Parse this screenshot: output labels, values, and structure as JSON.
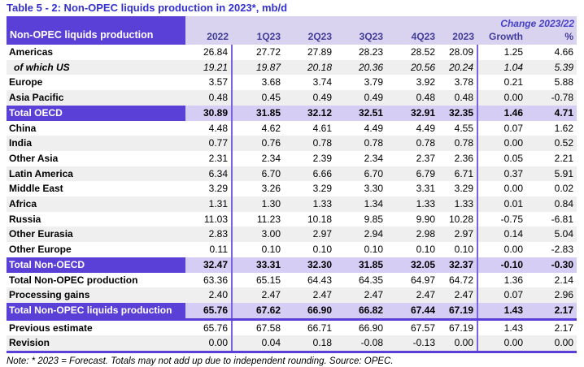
{
  "title": "Table 5 - 2: Non-OPEC liquids production in 2023*, mb/d",
  "note": "Note: * 2023 = Forecast. Totals may not add up due to independent rounding. Source: OPEC.",
  "colors": {
    "title_blue": "#3330cf",
    "header_purple": "#5a40d6",
    "header_lavender": "#dad3f0",
    "total_row_lavender": "#d6cdf4",
    "stripe_gray": "#efefef",
    "column_separator_purple": "#7a63e0",
    "column_header_text": "#403d99",
    "change_label_text": "#4440c8"
  },
  "table": {
    "corner_label": "Non-OPEC liquids production",
    "change_label": "Change 2023/22",
    "columns": [
      "2022",
      "1Q23",
      "2Q23",
      "3Q23",
      "4Q23",
      "2023",
      "Growth",
      "%"
    ],
    "rows": [
      {
        "label": "Americas",
        "style": "plain",
        "values": [
          "26.84",
          "27.72",
          "27.89",
          "28.23",
          "28.52",
          "28.09",
          "1.25",
          "4.66"
        ]
      },
      {
        "label": "of which US",
        "style": "italic gray",
        "values": [
          "19.21",
          "19.87",
          "20.18",
          "20.36",
          "20.56",
          "20.24",
          "1.04",
          "5.39"
        ]
      },
      {
        "label": "Europe",
        "style": "plain",
        "values": [
          "3.57",
          "3.68",
          "3.74",
          "3.79",
          "3.92",
          "3.78",
          "0.21",
          "5.88"
        ]
      },
      {
        "label": "Asia Pacific",
        "style": "gray",
        "values": [
          "0.48",
          "0.45",
          "0.49",
          "0.49",
          "0.48",
          "0.48",
          "0.00",
          "-0.78"
        ]
      },
      {
        "label": "Total OECD",
        "style": "total",
        "values": [
          "30.89",
          "31.85",
          "32.12",
          "32.51",
          "32.91",
          "32.35",
          "1.46",
          "4.71"
        ]
      },
      {
        "label": "China",
        "style": "plain",
        "values": [
          "4.48",
          "4.62",
          "4.61",
          "4.49",
          "4.49",
          "4.55",
          "0.07",
          "1.62"
        ]
      },
      {
        "label": "India",
        "style": "gray",
        "values": [
          "0.77",
          "0.76",
          "0.78",
          "0.78",
          "0.78",
          "0.78",
          "0.00",
          "0.52"
        ]
      },
      {
        "label": "Other Asia",
        "style": "plain",
        "values": [
          "2.31",
          "2.34",
          "2.39",
          "2.34",
          "2.37",
          "2.36",
          "0.05",
          "2.21"
        ]
      },
      {
        "label": "Latin America",
        "style": "gray",
        "values": [
          "6.34",
          "6.70",
          "6.66",
          "6.70",
          "6.79",
          "6.71",
          "0.37",
          "5.91"
        ]
      },
      {
        "label": "Middle East",
        "style": "plain",
        "values": [
          "3.29",
          "3.26",
          "3.29",
          "3.30",
          "3.31",
          "3.29",
          "0.00",
          "0.02"
        ]
      },
      {
        "label": "Africa",
        "style": "gray",
        "values": [
          "1.31",
          "1.30",
          "1.33",
          "1.34",
          "1.33",
          "1.33",
          "0.01",
          "0.84"
        ]
      },
      {
        "label": "Russia",
        "style": "plain",
        "values": [
          "11.03",
          "11.23",
          "10.18",
          "9.85",
          "9.90",
          "10.28",
          "-0.75",
          "-6.81"
        ]
      },
      {
        "label": "Other Eurasia",
        "style": "gray",
        "values": [
          "2.83",
          "3.00",
          "2.97",
          "2.94",
          "2.98",
          "2.97",
          "0.14",
          "5.04"
        ]
      },
      {
        "label": "Other Europe",
        "style": "plain",
        "values": [
          "0.11",
          "0.10",
          "0.10",
          "0.10",
          "0.10",
          "0.10",
          "0.00",
          "-2.83"
        ]
      },
      {
        "label": "Total Non-OECD",
        "style": "total",
        "values": [
          "32.47",
          "33.31",
          "32.30",
          "31.85",
          "32.05",
          "32.37",
          "-0.10",
          "-0.30"
        ]
      },
      {
        "label": "Total Non-OPEC production",
        "style": "plain",
        "values": [
          "63.36",
          "65.15",
          "64.43",
          "64.35",
          "64.97",
          "64.72",
          "1.36",
          "2.14"
        ]
      },
      {
        "label": "Processing gains",
        "style": "gray",
        "values": [
          "2.40",
          "2.47",
          "2.47",
          "2.47",
          "2.47",
          "2.47",
          "0.07",
          "2.96"
        ]
      },
      {
        "label": "Total Non-OPEC liquids production",
        "style": "total",
        "divider": true,
        "values": [
          "65.76",
          "67.62",
          "66.90",
          "66.82",
          "67.44",
          "67.19",
          "1.43",
          "2.17"
        ]
      },
      {
        "label": "Previous estimate",
        "style": "plain",
        "values": [
          "65.76",
          "67.58",
          "66.71",
          "66.90",
          "67.57",
          "67.19",
          "1.43",
          "2.17"
        ]
      },
      {
        "label": "Revision",
        "style": "gray",
        "divider": true,
        "values": [
          "0.00",
          "0.04",
          "0.18",
          "-0.08",
          "-0.13",
          "0.00",
          "0.00",
          "0.00"
        ]
      }
    ]
  }
}
